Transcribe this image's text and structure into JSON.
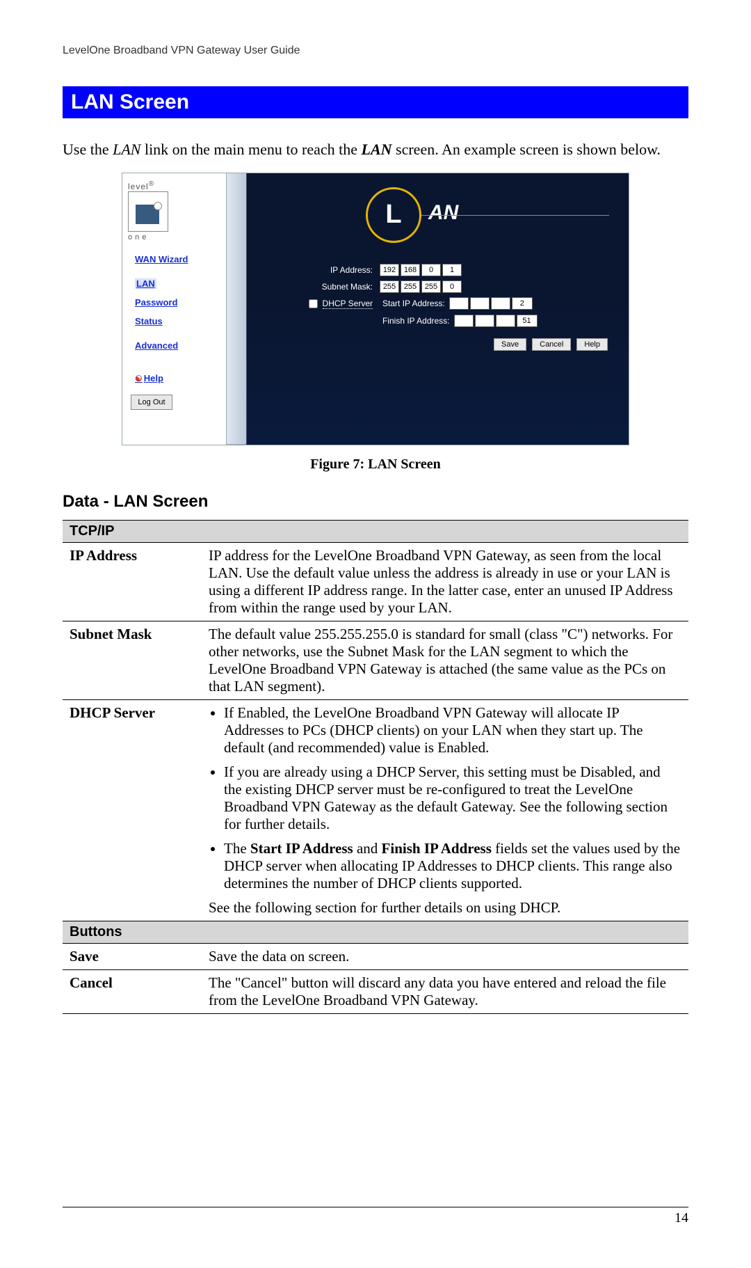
{
  "header": "LevelOne Broadband VPN Gateway User Guide",
  "section_title": "LAN Screen",
  "intro": {
    "pre": "Use the ",
    "lan": "LAN",
    "mid": " link on the main menu to reach the ",
    "lan2": "LAN",
    "post": " screen. An example screen is shown below."
  },
  "screenshot": {
    "brand_top": "level",
    "brand_bottom": "one",
    "nav": {
      "wan": "WAN Wizard",
      "lan": "LAN",
      "password": "Password",
      "status": "Status",
      "advanced": "Advanced",
      "help": "Help",
      "logout": "Log Out"
    },
    "badge_letter": "L",
    "badge_text": "AN",
    "labels": {
      "ip": "IP Address:",
      "mask": "Subnet Mask:",
      "dhcp": "DHCP Server",
      "start": "Start IP Address:",
      "finish": "Finish IP Address:"
    },
    "ip": [
      "192",
      "168",
      "0",
      "1"
    ],
    "mask": [
      "255",
      "255",
      "255",
      "0"
    ],
    "start": [
      "",
      "",
      "",
      "2"
    ],
    "finish": [
      "",
      "",
      "",
      "51"
    ],
    "buttons": {
      "save": "Save",
      "cancel": "Cancel",
      "help": "Help"
    }
  },
  "figure_caption": "Figure 7: LAN Screen",
  "data_heading": "Data - LAN Screen",
  "table": {
    "tcpip_header": "TCP/IP",
    "rows": {
      "ip_label": "IP Address",
      "ip_text": "IP address for the LevelOne Broadband VPN Gateway, as seen from the local LAN. Use the default value unless the address is already in use or your LAN is using a different IP address range. In the latter case, enter an unused IP Address from within the range used by your LAN.",
      "mask_label": "Subnet Mask",
      "mask_text": "The default value 255.255.255.0 is standard for small (class \"C\") networks. For other networks, use the Subnet Mask for the LAN segment to which the LevelOne Broadband VPN Gateway is attached (the same value as the PCs on that LAN segment).",
      "dhcp_label": "DHCP Server",
      "dhcp_b1": "If Enabled, the LevelOne Broadband VPN Gateway will allocate IP Addresses to PCs (DHCP clients) on your LAN when they start up. The default (and recommended) value is Enabled.",
      "dhcp_b2": "If you are already using a DHCP Server, this setting must be Disabled, and the existing DHCP server must be re-configured to treat the LevelOne Broadband VPN Gateway as the default Gateway. See the following section for further details.",
      "dhcp_b3_pre": "The ",
      "dhcp_b3_s1": "Start IP Address",
      "dhcp_b3_mid": " and ",
      "dhcp_b3_s2": "Finish IP Address",
      "dhcp_b3_post": " fields set the values used by the DHCP server when allocating IP Addresses to DHCP clients. This range also determines the number of DHCP clients supported.",
      "dhcp_tail": "See the following section for further details on using DHCP."
    },
    "buttons_header": "Buttons",
    "save_label": "Save",
    "save_text": "Save the data on screen.",
    "cancel_label": "Cancel",
    "cancel_text": "The \"Cancel\" button will discard any data you have entered and reload the file from the LevelOne Broadband VPN Gateway."
  },
  "page_number": "14"
}
